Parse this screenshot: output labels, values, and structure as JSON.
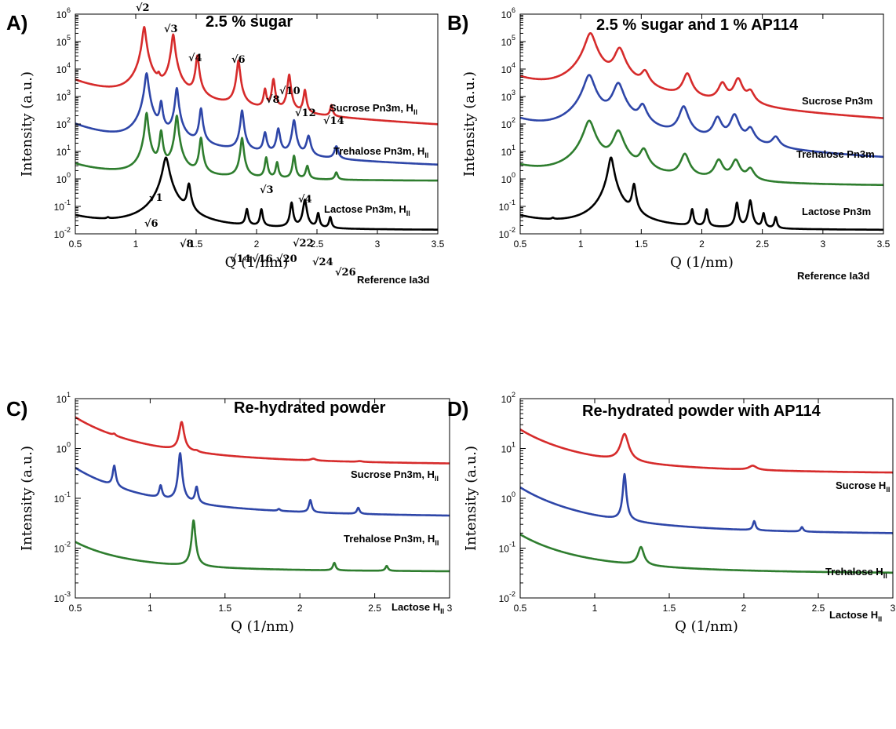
{
  "chart_data": [
    {
      "panel": "A)",
      "type": "line",
      "title": "2.5 % sugar",
      "xlabel": "Q (1/nm)",
      "ylabel": "Intensity (a.u.)",
      "xlim": [
        0.5,
        3.5
      ],
      "ylim_log10": [
        -2,
        6
      ],
      "yscale": "log",
      "x_ticks": [
        0.5,
        1,
        1.5,
        2,
        2.5,
        3,
        3.5
      ],
      "x_tick_labels": [
        "0.5",
        "1",
        "1.5",
        "2",
        "2.5",
        "3",
        "3.5"
      ],
      "y_tick_exponents": [
        -2,
        -1,
        0,
        1,
        2,
        3,
        4,
        5,
        6
      ],
      "series": [
        {
          "name": "Sucrose Pn3m, H",
          "name_subscript": "II",
          "color": "#d62b2b",
          "baseline": {
            "a": 1.0,
            "b": 1000,
            "pw": 2.0
          },
          "peaks": [
            [
              1.07,
              340000,
              0.012
            ],
            [
              1.19,
              2500,
              0.01
            ],
            [
              1.31,
              180000,
              0.011
            ],
            [
              1.51,
              30000,
              0.01
            ],
            [
              1.85,
              20000,
              0.01
            ],
            [
              2.07,
              1500,
              0.01
            ],
            [
              2.14,
              4000,
              0.01
            ],
            [
              2.27,
              6000,
              0.01
            ],
            [
              2.4,
              1500,
              0.01
            ],
            [
              2.62,
              300,
              0.01
            ]
          ]
        },
        {
          "name": "Trehalose Pn3m, H",
          "name_subscript": "II",
          "color": "#2e46a8",
          "baseline": {
            "a": 1.0,
            "b": 25,
            "pw": 2.0
          },
          "peaks": [
            [
              1.09,
              7000,
              0.012
            ],
            [
              1.21,
              600,
              0.01
            ],
            [
              1.34,
              2000,
              0.01
            ],
            [
              1.54,
              350,
              0.01
            ],
            [
              1.88,
              300,
              0.01
            ],
            [
              2.07,
              40,
              0.012
            ],
            [
              2.18,
              60,
              0.012
            ],
            [
              2.31,
              130,
              0.012
            ],
            [
              2.43,
              30,
              0.015
            ],
            [
              2.66,
              10,
              0.015
            ]
          ]
        },
        {
          "name": "Lactose Pn3m, H",
          "name_subscript": "II",
          "color": "#2e7d2e",
          "baseline": {
            "a": 0.8,
            "b": 0.7,
            "pw": 2.0
          },
          "peaks": [
            [
              1.09,
              250,
              0.01
            ],
            [
              1.21,
              55,
              0.01
            ],
            [
              1.34,
              200,
              0.01
            ],
            [
              1.54,
              30,
              0.01
            ],
            [
              1.88,
              30,
              0.01
            ],
            [
              2.08,
              5,
              0.01
            ],
            [
              2.17,
              3,
              0.01
            ],
            [
              2.31,
              6,
              0.01
            ],
            [
              2.42,
              2,
              0.012
            ],
            [
              2.66,
              0.8,
              0.012
            ]
          ]
        },
        {
          "name": "Reference Ia3d",
          "color": "#000000",
          "baseline": {
            "a": 0.013,
            "b": 0.008,
            "pw": 2.0
          },
          "peaks": [
            [
              0.77,
              0.004,
              0.01
            ],
            [
              1.25,
              6.0,
              0.02
            ],
            [
              1.44,
              0.6,
              0.012
            ],
            [
              1.92,
              0.06,
              0.01
            ],
            [
              2.04,
              0.06,
              0.01
            ],
            [
              2.29,
              0.12,
              0.01
            ],
            [
              2.4,
              0.16,
              0.012
            ],
            [
              2.51,
              0.04,
              0.01
            ],
            [
              2.61,
              0.025,
              0.01
            ]
          ]
        }
      ],
      "annotations": [
        "√2",
        "√3",
        "√4",
        "√6",
        "√8",
        "√10",
        "√12",
        "√14",
        "√1",
        "√3",
        "√4",
        "√6",
        "√8",
        "√14",
        "√16",
        "√20",
        "√22",
        "√24",
        "√26"
      ]
    },
    {
      "panel": "B)",
      "type": "line",
      "title": "2.5 % sugar and 1 % AP114",
      "xlabel": "Q (1/nm)",
      "ylabel": "Intensity (a.u.)",
      "xlim": [
        0.5,
        3.5
      ],
      "ylim_log10": [
        -2,
        6
      ],
      "yscale": "log",
      "x_ticks": [
        0.5,
        1,
        1.5,
        2,
        2.5,
        3,
        3.5
      ],
      "x_tick_labels": [
        "0.5",
        "1",
        "1.5",
        "2",
        "2.5",
        "3",
        "3.5"
      ],
      "y_tick_exponents": [
        -2,
        -1,
        0,
        1,
        2,
        3,
        4,
        5,
        6
      ],
      "series": [
        {
          "name": "Sucrose Pn3m",
          "color": "#d62b2b",
          "baseline": {
            "a": 1.0,
            "b": 1200,
            "pw": 2.0
          },
          "peaks": [
            [
              1.08,
              200000,
              0.035
            ],
            [
              1.32,
              55000,
              0.035
            ],
            [
              1.53,
              6000,
              0.03
            ],
            [
              1.88,
              6000,
              0.03
            ],
            [
              2.17,
              2500,
              0.03
            ],
            [
              2.3,
              4000,
              0.03
            ],
            [
              2.4,
              1000,
              0.03
            ]
          ]
        },
        {
          "name": "Trehalose Pn3m",
          "color": "#2e46a8",
          "baseline": {
            "a": 1.0,
            "b": 35,
            "pw": 2.0
          },
          "peaks": [
            [
              1.07,
              6000,
              0.035
            ],
            [
              1.31,
              3000,
              0.035
            ],
            [
              1.51,
              400,
              0.03
            ],
            [
              1.85,
              400,
              0.03
            ],
            [
              2.13,
              150,
              0.03
            ],
            [
              2.27,
              200,
              0.03
            ],
            [
              2.4,
              50,
              0.03
            ],
            [
              2.61,
              20,
              0.03
            ]
          ]
        },
        {
          "name": "Lactose Pn3m",
          "color": "#2e7d2e",
          "baseline": {
            "a": 0.5,
            "b": 0.6,
            "pw": 2.0
          },
          "peaks": [
            [
              1.07,
              130,
              0.035
            ],
            [
              1.31,
              55,
              0.035
            ],
            [
              1.52,
              10,
              0.03
            ],
            [
              1.86,
              7,
              0.03
            ],
            [
              2.14,
              4,
              0.03
            ],
            [
              2.28,
              4,
              0.03
            ],
            [
              2.4,
              1.5,
              0.03
            ]
          ]
        },
        {
          "name": "Reference Ia3d",
          "color": "#000000",
          "baseline": {
            "a": 0.013,
            "b": 0.008,
            "pw": 2.0
          },
          "peaks": [
            [
              0.77,
              0.004,
              0.01
            ],
            [
              1.25,
              6.0,
              0.018
            ],
            [
              1.44,
              0.6,
              0.012
            ],
            [
              1.92,
              0.06,
              0.01
            ],
            [
              2.04,
              0.06,
              0.01
            ],
            [
              2.29,
              0.12,
              0.01
            ],
            [
              2.4,
              0.15,
              0.012
            ],
            [
              2.51,
              0.04,
              0.01
            ],
            [
              2.61,
              0.025,
              0.01
            ]
          ]
        }
      ]
    },
    {
      "panel": "C)",
      "type": "line",
      "title": "Re-hydrated powder",
      "xlabel": "Q (1/nm)",
      "ylabel": "Intensity (a.u.)",
      "xlim": [
        0.5,
        3
      ],
      "ylim_log10": [
        -3,
        1
      ],
      "yscale": "log",
      "x_ticks": [
        0.5,
        1,
        1.5,
        2,
        2.5,
        3
      ],
      "x_tick_labels": [
        "0.5",
        "1",
        "1.5",
        "2",
        "2.5",
        "3"
      ],
      "y_tick_exponents": [
        -3,
        -2,
        -1,
        0,
        1
      ],
      "series": [
        {
          "name": "Sucrose Pn3m, H",
          "name_subscript": "II",
          "color": "#d62b2b",
          "baseline": {
            "a": 0.45,
            "b": 0.72,
            "pw": 2.4
          },
          "peaks": [
            [
              0.76,
              0.15,
              0.01
            ],
            [
              1.21,
              2.5,
              0.015
            ],
            [
              1.31,
              0.05,
              0.015
            ],
            [
              2.09,
              0.05,
              0.02
            ],
            [
              2.4,
              0.02,
              0.02
            ]
          ]
        },
        {
          "name": "Trehalose Pn3m, H",
          "name_subscript": "II",
          "color": "#2e46a8",
          "baseline": {
            "a": 0.04,
            "b": 0.07,
            "pw": 2.4
          },
          "peaks": [
            [
              0.76,
              0.28,
              0.01
            ],
            [
              1.07,
              0.08,
              0.01
            ],
            [
              1.2,
              0.72,
              0.01
            ],
            [
              1.31,
              0.09,
              0.01
            ],
            [
              1.86,
              0.005,
              0.01
            ],
            [
              2.07,
              0.04,
              0.01
            ],
            [
              2.39,
              0.016,
              0.01
            ]
          ]
        },
        {
          "name": "Lactose H",
          "name_subscript": "II",
          "color": "#2e7d2e",
          "baseline": {
            "a": 0.0033,
            "b": 0.0019,
            "pw": 2.4
          },
          "peaks": [
            [
              1.29,
              0.032,
              0.01
            ],
            [
              2.23,
              0.0015,
              0.01
            ],
            [
              2.58,
              0.0009,
              0.01
            ]
          ]
        }
      ]
    },
    {
      "panel": "D)",
      "type": "line",
      "title": "Re-hydrated powder with AP114",
      "xlabel": "Q (1/nm)",
      "ylabel": "Intensity (a.u.)",
      "xlim": [
        0.5,
        3
      ],
      "ylim_log10": [
        -2,
        2
      ],
      "yscale": "log",
      "x_ticks": [
        0.5,
        1,
        1.5,
        2,
        2.5,
        3
      ],
      "x_tick_labels": [
        "0.5",
        "1",
        "1.5",
        "2",
        "2.5",
        "3"
      ],
      "y_tick_exponents": [
        -2,
        -1,
        0,
        1,
        2
      ],
      "series": [
        {
          "name": "Sucrose H",
          "name_subscript": "II",
          "color": "#d62b2b",
          "baseline": {
            "a": 3.0,
            "b": 4.0,
            "pw": 2.4
          },
          "peaks": [
            [
              1.2,
              14,
              0.025
            ],
            [
              2.06,
              0.8,
              0.03
            ]
          ]
        },
        {
          "name": "Trehalose H",
          "name_subscript": "II",
          "color": "#2e46a8",
          "baseline": {
            "a": 0.18,
            "b": 0.28,
            "pw": 2.4
          },
          "peaks": [
            [
              1.2,
              2.7,
              0.009
            ],
            [
              2.07,
              0.12,
              0.01
            ],
            [
              2.39,
              0.05,
              0.01
            ]
          ]
        },
        {
          "name": "Lactose H",
          "name_subscript": "II",
          "color": "#2e7d2e",
          "baseline": {
            "a": 0.03,
            "b": 0.03,
            "pw": 2.4
          },
          "peaks": [
            [
              1.31,
              0.06,
              0.02
            ]
          ]
        }
      ]
    }
  ]
}
